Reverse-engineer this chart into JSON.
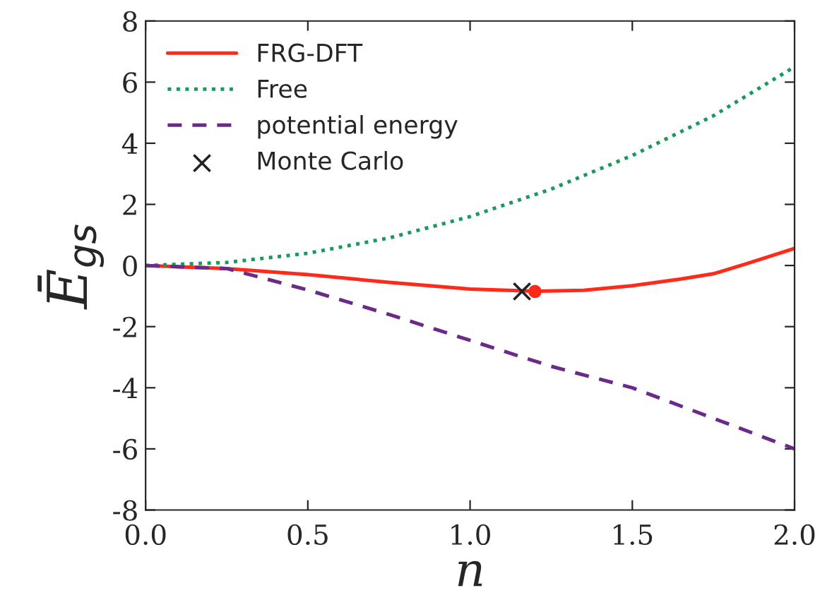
{
  "chart_data": {
    "type": "line",
    "xlabel": "n",
    "ylabel": "Ē$_{gs}$",
    "series": [
      {
        "name": "FRG-DFT",
        "color": "#ff2a1a",
        "line_style": "solid",
        "marker": "none",
        "x": [
          0,
          0.25,
          0.5,
          0.75,
          1.0,
          1.2,
          1.35,
          1.5,
          1.65,
          1.75,
          1.85,
          2.0
        ],
        "values": [
          0,
          -0.1,
          -0.3,
          -0.55,
          -0.77,
          -0.84,
          -0.81,
          -0.66,
          -0.44,
          -0.27,
          0.05,
          0.56
        ]
      },
      {
        "name": "Free",
        "color": "#1a9a5a",
        "line_style": "dotted",
        "marker": "none",
        "x": [
          0,
          0.25,
          0.5,
          0.75,
          1.0,
          1.25,
          1.5,
          1.75,
          2.0
        ],
        "values": [
          0,
          0.1,
          0.4,
          0.9,
          1.6,
          2.5,
          3.6,
          4.9,
          6.5
        ]
      },
      {
        "name": "potential energy",
        "color": "#6a2a8a",
        "line_style": "dashed",
        "marker": "none",
        "x": [
          0,
          0.25,
          0.5,
          0.75,
          1.0,
          1.25,
          1.5,
          1.75,
          2.0
        ],
        "values": [
          0,
          -0.1,
          -0.8,
          -1.6,
          -2.45,
          -3.3,
          -4.0,
          -5.0,
          -6.0
        ]
      },
      {
        "name": "Monte Carlo",
        "type": "scatter",
        "color": "#222222",
        "marker": "cross",
        "x": [
          1.16
        ],
        "values": [
          -0.85
        ]
      },
      {
        "type": "scatter",
        "color": "#ff2a1a",
        "marker": "circle",
        "x": [
          1.2
        ],
        "values": [
          -0.85
        ]
      }
    ],
    "xlim": [
      0,
      2
    ],
    "xticks": [
      {
        "value": 0,
        "label": "0.0"
      },
      {
        "value": 0.5,
        "label": "0.5"
      },
      {
        "value": 1,
        "label": "1.0"
      },
      {
        "value": 1.5,
        "label": "1.5"
      },
      {
        "value": 2,
        "label": "2.0"
      }
    ],
    "ylim": [
      -8,
      8
    ],
    "yticks": [
      -8,
      -6,
      -4,
      -2,
      0,
      2,
      4,
      6,
      8
    ],
    "grid": false,
    "legend": "top left"
  }
}
